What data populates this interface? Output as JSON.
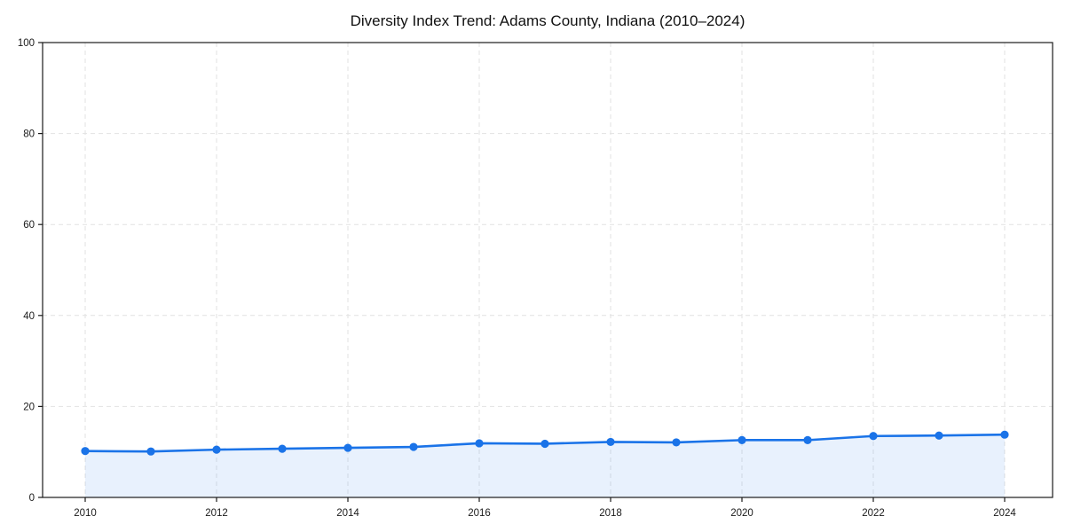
{
  "chart_data": {
    "type": "line",
    "title": "Diversity Index Trend: Adams County, Indiana (2010–2024)",
    "xlabel": "",
    "ylabel": "",
    "x": [
      2010,
      2011,
      2012,
      2013,
      2014,
      2015,
      2016,
      2017,
      2018,
      2019,
      2020,
      2021,
      2022,
      2023,
      2024
    ],
    "series": [
      {
        "name": "Diversity Index",
        "values": [
          10.2,
          10.1,
          10.5,
          10.7,
          10.9,
          11.1,
          11.9,
          11.8,
          12.2,
          12.1,
          12.6,
          12.6,
          13.5,
          13.6,
          13.8
        ]
      }
    ],
    "xticks": [
      2010,
      2012,
      2014,
      2016,
      2018,
      2020,
      2022,
      2024
    ],
    "yticks": [
      0,
      20,
      40,
      60,
      80,
      100
    ],
    "ylim": [
      0,
      100
    ],
    "grid": true,
    "grid_style": "dashed",
    "legend": false,
    "area_fill": true,
    "colors": {
      "line": "#1a73e8",
      "marker": "#1a73e8",
      "fill": "rgba(26,115,232,0.10)",
      "gridline": "#e2e2e2",
      "spine": "#1a1a1a",
      "text": "#111111"
    }
  }
}
